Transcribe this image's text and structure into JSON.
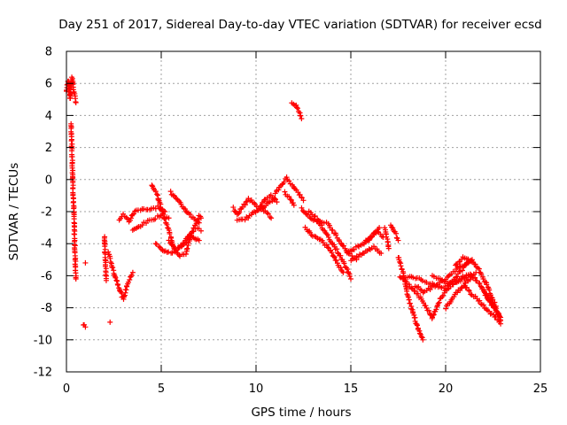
{
  "chart_data": {
    "type": "scatter",
    "title": "Day 251 of 2017, Sidereal Day-to-day VTEC variation (SDTVAR) for receiver ecsd",
    "xlabel": "GPS time / hours",
    "ylabel": "SDTVAR / TECUs",
    "xlim": [
      0,
      25
    ],
    "ylim": [
      -12,
      8
    ],
    "xticks": [
      0,
      5,
      10,
      15,
      20,
      25
    ],
    "yticks": [
      -12,
      -10,
      -8,
      -6,
      -4,
      -2,
      0,
      2,
      4,
      6,
      8
    ],
    "xtick_labels": [
      "0",
      "5",
      "10",
      "15",
      "20",
      "25"
    ],
    "ytick_labels": [
      "-12",
      "-10",
      "-8",
      "-6",
      "-4",
      "-2",
      "0",
      "2",
      "4",
      "6",
      "8"
    ],
    "grid": true,
    "marker": "+",
    "series_color": "#ff0000",
    "series": [
      {
        "name": "SDTVAR",
        "segments": [
          {
            "x": [
              0.0,
              0.1,
              0.2,
              0.3,
              0.4,
              0.5
            ],
            "y": [
              5.5,
              6.2,
              5.0,
              6.4,
              5.4,
              4.8
            ]
          },
          {
            "x": [
              0.25,
              0.3,
              0.35,
              0.4,
              0.45,
              0.5
            ],
            "y": [
              3.5,
              1.5,
              -0.5,
              -2.5,
              -4.5,
              -6.2
            ]
          },
          {
            "x": [
              0.9,
              1.0
            ],
            "y": [
              -9.0,
              -9.2
            ]
          },
          {
            "x": [
              1.0
            ],
            "y": [
              -5.2
            ]
          },
          {
            "x": [
              2.0,
              2.1
            ],
            "y": [
              -3.5,
              -6.3
            ]
          },
          {
            "x": [
              2.3
            ],
            "y": [
              -8.9
            ]
          },
          {
            "x": [
              2.2,
              2.5,
              2.8,
              3.0,
              3.2,
              3.5
            ],
            "y": [
              -4.5,
              -5.8,
              -6.8,
              -7.5,
              -6.6,
              -5.8
            ]
          },
          {
            "x": [
              2.8,
              3.0,
              3.3,
              3.6,
              4.0,
              4.4,
              4.8,
              5.2
            ],
            "y": [
              -2.5,
              -2.2,
              -2.6,
              -2.0,
              -1.8,
              -1.9,
              -1.7,
              -2.0
            ]
          },
          {
            "x": [
              3.5,
              4.0,
              4.5,
              5.0,
              5.4
            ],
            "y": [
              -3.2,
              -2.8,
              -2.5,
              -2.2,
              -2.4
            ]
          },
          {
            "x": [
              4.5,
              4.8,
              5.1,
              5.4,
              5.7,
              6.0,
              6.3,
              6.6,
              6.8,
              7.0,
              7.1
            ],
            "y": [
              -0.3,
              -1.0,
              -2.2,
              -3.2,
              -4.3,
              -4.8,
              -4.6,
              -3.4,
              -2.8,
              -2.3,
              -2.4
            ]
          },
          {
            "x": [
              5.4,
              5.8,
              6.2,
              6.6,
              7.0
            ],
            "y": [
              -3.8,
              -4.4,
              -4.0,
              -3.5,
              -3.8
            ]
          },
          {
            "x": [
              5.5,
              6.0,
              6.5,
              7.0
            ],
            "y": [
              -0.8,
              -1.5,
              -2.2,
              -2.7
            ]
          },
          {
            "x": [
              4.7,
              5.0,
              5.3,
              5.6,
              5.9,
              6.2,
              6.5,
              6.8,
              7.1
            ],
            "y": [
              -4.0,
              -4.3,
              -4.6,
              -4.5,
              -4.3,
              -3.9,
              -3.4,
              -3.0,
              -3.2
            ]
          },
          {
            "x": [
              8.8,
              9.0,
              9.3,
              9.6,
              9.9,
              10.2,
              10.5,
              10.8,
              11.1
            ],
            "y": [
              -1.8,
              -2.2,
              -1.7,
              -1.2,
              -1.5,
              -1.8,
              -1.2,
              -1.0,
              -1.4
            ]
          },
          {
            "x": [
              9.0,
              9.5,
              10.0,
              10.5,
              11.0
            ],
            "y": [
              -2.6,
              -2.4,
              -2.0,
              -1.6,
              -1.2
            ]
          },
          {
            "x": [
              10.2,
              10.5,
              10.8
            ],
            "y": [
              -1.6,
              -2.0,
              -2.4
            ]
          },
          {
            "x": [
              11.0,
              11.3,
              11.6,
              11.9,
              12.2,
              12.5
            ],
            "y": [
              -0.9,
              -0.4,
              0.1,
              -0.3,
              -0.8,
              -1.3
            ]
          },
          {
            "x": [
              11.5,
              11.8,
              12.0
            ],
            "y": [
              -0.8,
              -1.2,
              -1.6
            ]
          },
          {
            "x": [
              11.9,
              12.1,
              12.3,
              12.4
            ],
            "y": [
              4.8,
              4.6,
              4.2,
              3.8
            ]
          },
          {
            "x": [
              12.4,
              12.8,
              13.2,
              13.6,
              14.0,
              14.4,
              14.8,
              15.0
            ],
            "y": [
              -1.8,
              -2.3,
              -2.6,
              -3.2,
              -3.9,
              -4.7,
              -5.6,
              -6.2
            ]
          },
          {
            "x": [
              12.6,
              13.0,
              13.4,
              13.8,
              14.2,
              14.6
            ],
            "y": [
              -3.0,
              -3.5,
              -3.8,
              -4.2,
              -5.0,
              -5.8
            ]
          },
          {
            "x": [
              12.8,
              13.3,
              13.8,
              14.3,
              14.8,
              15.3
            ],
            "y": [
              -2.0,
              -2.5,
              -2.8,
              -3.6,
              -4.5,
              -5.0
            ]
          },
          {
            "x": [
              14.8,
              15.2,
              15.6,
              16.0,
              16.4,
              16.7
            ],
            "y": [
              -4.6,
              -4.3,
              -4.0,
              -3.7,
              -3.2,
              -3.6
            ]
          },
          {
            "x": [
              15.0,
              15.4,
              15.8,
              16.2,
              16.6
            ],
            "y": [
              -5.0,
              -4.8,
              -4.5,
              -4.2,
              -4.6
            ]
          },
          {
            "x": [
              15.8,
              16.2,
              16.5
            ],
            "y": [
              -3.8,
              -3.4,
              -3.0
            ]
          },
          {
            "x": [
              16.8,
              17.0
            ],
            "y": [
              -3.0,
              -4.3
            ]
          },
          {
            "x": [
              17.1,
              17.3,
              17.5
            ],
            "y": [
              -2.8,
              -3.2,
              -3.8
            ]
          },
          {
            "x": [
              17.5,
              17.8,
              18.0,
              18.2,
              18.4,
              18.6,
              18.8
            ],
            "y": [
              -4.8,
              -6.0,
              -7.2,
              -8.0,
              -8.8,
              -9.5,
              -10.0
            ]
          },
          {
            "x": [
              17.6,
              18.0,
              18.4,
              18.8,
              19.1,
              19.3
            ],
            "y": [
              -6.0,
              -6.5,
              -7.0,
              -7.6,
              -8.2,
              -8.6
            ]
          },
          {
            "x": [
              17.8,
              18.2,
              18.6,
              19.0,
              19.4,
              19.8,
              20.2,
              20.6,
              21.0,
              21.4
            ],
            "y": [
              -6.2,
              -6.0,
              -6.2,
              -6.4,
              -6.6,
              -6.8,
              -6.6,
              -6.0,
              -5.4,
              -5.0
            ]
          },
          {
            "x": [
              18.4,
              18.8,
              19.2,
              19.6,
              20.0,
              20.4,
              20.8,
              21.2
            ],
            "y": [
              -6.6,
              -7.0,
              -6.8,
              -6.5,
              -6.2,
              -5.8,
              -5.4,
              -5.2
            ]
          },
          {
            "x": [
              19.3,
              19.7,
              20.1,
              20.5,
              20.9,
              21.3
            ],
            "y": [
              -8.6,
              -7.5,
              -6.8,
              -6.4,
              -6.1,
              -5.9
            ]
          },
          {
            "x": [
              19.3,
              19.6,
              20.0,
              20.4,
              20.8,
              21.2,
              21.6
            ],
            "y": [
              -6.0,
              -6.2,
              -6.4,
              -6.5,
              -6.3,
              -6.0,
              -5.8
            ]
          },
          {
            "x": [
              20.0,
              20.5,
              21.0,
              21.4,
              21.8,
              22.2,
              22.6,
              22.9
            ],
            "y": [
              -8.0,
              -7.2,
              -6.5,
              -6.0,
              -6.5,
              -7.3,
              -8.0,
              -8.6
            ]
          },
          {
            "x": [
              20.5,
              20.9,
              21.3,
              21.7,
              22.1,
              22.5,
              22.9
            ],
            "y": [
              -5.4,
              -4.9,
              -5.0,
              -5.5,
              -6.4,
              -7.5,
              -8.8
            ]
          },
          {
            "x": [
              21.0,
              21.4,
              21.8,
              22.2,
              22.6,
              22.9
            ],
            "y": [
              -6.6,
              -7.2,
              -7.6,
              -8.2,
              -8.5,
              -9.0
            ]
          },
          {
            "x": [
              22.0,
              22.4,
              22.8
            ],
            "y": [
              -7.0,
              -7.8,
              -8.4
            ]
          }
        ]
      }
    ]
  }
}
